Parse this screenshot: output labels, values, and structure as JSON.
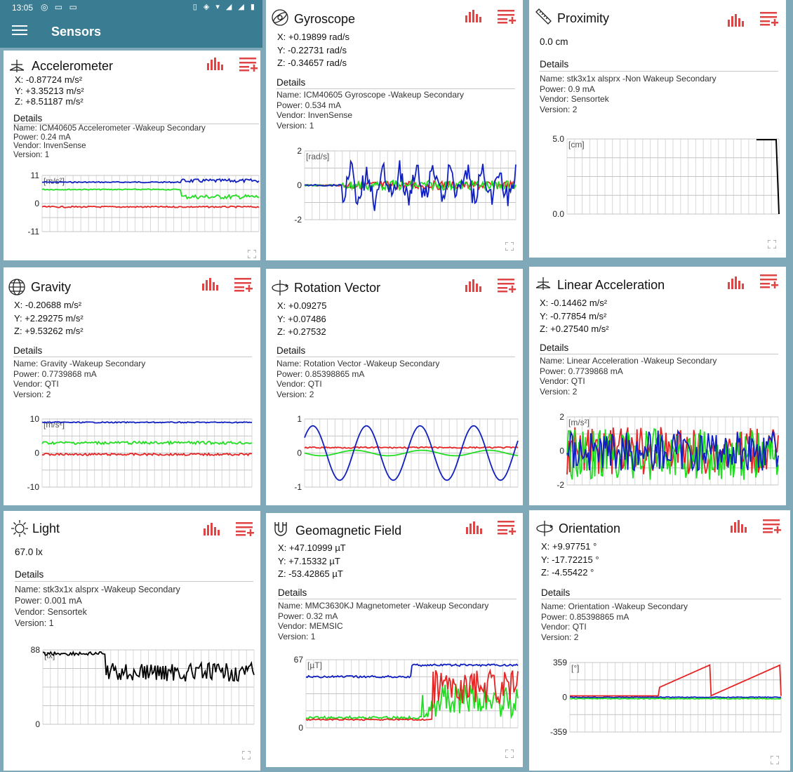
{
  "status_bar": {
    "time": "13:05"
  },
  "app_bar": {
    "title": "Sensors"
  },
  "colors": {
    "x": "#e52424",
    "y": "#22dd22",
    "z": "#1020c0",
    "single": "#000000",
    "accent": "#e04545",
    "appbar": "#3a7d92"
  },
  "cards": [
    {
      "id": "accelerometer",
      "title": "Accelerometer",
      "icon": "accelerometer-icon",
      "readings": [
        "X:  -0.87724 m/s²",
        "Y: +3.35213 m/s²",
        "Z: +8.51187 m/s²"
      ],
      "details_label": "Details",
      "details": [
        "Name: ICM40605 Accelerometer -Wakeup Secondary",
        "Power: 0.24 mA",
        "Vendor: InvenSense",
        "Version: 1"
      ],
      "chart": {
        "unit": "[m/s²]",
        "ticks": [
          "11",
          "0",
          "-11"
        ],
        "ymin": -11,
        "ymax": 11
      }
    },
    {
      "id": "gyroscope",
      "title": "Gyroscope",
      "icon": "gyroscope-icon",
      "readings": [
        "X: +0.19899 rad/s",
        "Y:  -0.22731 rad/s",
        "Z:  -0.34657 rad/s"
      ],
      "details_label": "Details",
      "details": [
        "Name: ICM40605 Gyroscope -Wakeup Secondary",
        "Power: 0.534 mA",
        "Vendor: InvenSense",
        "Version: 1"
      ],
      "chart": {
        "unit": "[rad/s]",
        "ticks": [
          "2",
          "0",
          "-2"
        ],
        "ymin": -2,
        "ymax": 2
      }
    },
    {
      "id": "proximity",
      "title": "Proximity",
      "icon": "proximity-icon",
      "readings": [
        "0.0 cm"
      ],
      "details_label": "Details",
      "details": [
        "Name: stk3x1x alsprx -Non Wakeup Secondary",
        "Power: 0.9 mA",
        "Vendor: Sensortek",
        "Version: 2"
      ],
      "chart": {
        "unit": "[cm]",
        "ticks": [
          "5.0",
          "0.0"
        ],
        "ymin": 0,
        "ymax": 5
      }
    },
    {
      "id": "gravity",
      "title": "Gravity",
      "icon": "gravity-icon",
      "readings": [
        "X:  -0.20688 m/s²",
        "Y: +2.29275 m/s²",
        "Z: +9.53262 m/s²"
      ],
      "details_label": "Details",
      "details": [
        "Name: Gravity -Wakeup Secondary",
        "Power: 0.7739868 mA",
        "Vendor: QTI",
        "Version: 2"
      ],
      "chart": {
        "unit": "[m/s²]",
        "ticks": [
          "10",
          "0",
          "-10"
        ],
        "ymin": -10,
        "ymax": 10
      }
    },
    {
      "id": "rotation-vector",
      "title": "Rotation Vector",
      "icon": "rotation-vector-icon",
      "readings": [
        "X: +0.09275",
        "Y: +0.07486",
        "Z: +0.27532"
      ],
      "details_label": "Details",
      "details": [
        "Name: Rotation Vector -Wakeup Secondary",
        "Power: 0.85398865 mA",
        "Vendor: QTI",
        "Version: 2"
      ],
      "chart": {
        "unit": "",
        "ticks": [
          "1",
          "0",
          "-1"
        ],
        "ymin": -1,
        "ymax": 1
      }
    },
    {
      "id": "linear-acceleration",
      "title": "Linear Acceleration",
      "icon": "linear-acceleration-icon",
      "readings": [
        "X:  -0.14462 m/s²",
        "Y:  -0.77854 m/s²",
        "Z: +0.27540 m/s²"
      ],
      "details_label": "Details",
      "details": [
        "Name: Linear Acceleration -Wakeup Secondary",
        "Power: 0.7739868 mA",
        "Vendor: QTI",
        "Version: 2"
      ],
      "chart": {
        "unit": "[m/s²]",
        "ticks": [
          "2",
          "0",
          "-2"
        ],
        "ymin": -2,
        "ymax": 2
      }
    },
    {
      "id": "light",
      "title": "Light",
      "icon": "light-icon",
      "readings": [
        "67.0 lx"
      ],
      "details_label": "Details",
      "details": [
        "Name: stk3x1x alsprx -Wakeup Secondary",
        "Power: 0.001 mA",
        "Vendor: Sensortek",
        "Version: 1"
      ],
      "chart": {
        "unit": "[lx]",
        "ticks": [
          "88",
          "0"
        ],
        "ymin": 0,
        "ymax": 88
      }
    },
    {
      "id": "geomagnetic-field",
      "title": "Geomagnetic Field",
      "icon": "geomagnetic-field-icon",
      "readings": [
        "X: +47.10999 µT",
        "Y: +7.15332 µT",
        "Z:  -53.42865 µT"
      ],
      "details_label": "Details",
      "details": [
        "Name: MMC3630KJ Magnetometer -Wakeup Secondary",
        "Power: 0.32 mA",
        "Vendor: MEMSIC",
        "Version: 1"
      ],
      "chart": {
        "unit": "[µT]",
        "ticks": [
          "67",
          "0"
        ],
        "ymin": 0,
        "ymax": 67
      }
    },
    {
      "id": "orientation",
      "title": "Orientation",
      "icon": "orientation-icon",
      "readings": [
        "X: +9.97751 °",
        "Y:  -17.72215 °",
        "Z:  -4.55422 °"
      ],
      "details_label": "Details",
      "details": [
        "Name: Orientation -Wakeup Secondary",
        "Power: 0.85398865 mA",
        "Vendor: QTI",
        "Version: 2"
      ],
      "chart": {
        "unit": "[°]",
        "ticks": [
          "359",
          "0",
          "-359"
        ],
        "ymin": -359,
        "ymax": 359
      }
    }
  ]
}
